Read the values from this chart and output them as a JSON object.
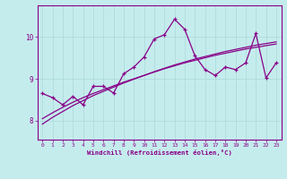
{
  "title": "",
  "xlabel": "Windchill (Refroidissement éolien,°C)",
  "ylabel": "",
  "bg_color": "#c5eced",
  "line_color": "#880088",
  "x": [
    0,
    1,
    2,
    3,
    4,
    5,
    6,
    7,
    8,
    9,
    10,
    11,
    12,
    13,
    14,
    15,
    16,
    17,
    18,
    19,
    20,
    21,
    22,
    23
  ],
  "y_main": [
    8.65,
    8.55,
    8.38,
    8.58,
    8.38,
    8.82,
    8.82,
    8.66,
    9.12,
    9.28,
    9.52,
    9.95,
    10.05,
    10.42,
    10.18,
    9.55,
    9.22,
    9.08,
    9.28,
    9.22,
    9.38,
    10.08,
    9.02,
    9.38
  ],
  "y_trend1": [
    7.92,
    8.08,
    8.22,
    8.36,
    8.48,
    8.6,
    8.7,
    8.8,
    8.9,
    8.99,
    9.08,
    9.17,
    9.25,
    9.33,
    9.4,
    9.47,
    9.53,
    9.59,
    9.65,
    9.7,
    9.75,
    9.8,
    9.84,
    9.88
  ],
  "y_trend2": [
    8.05,
    8.19,
    8.32,
    8.44,
    8.55,
    8.65,
    8.74,
    8.83,
    8.92,
    9.0,
    9.08,
    9.16,
    9.24,
    9.31,
    9.38,
    9.44,
    9.5,
    9.56,
    9.61,
    9.66,
    9.71,
    9.75,
    9.79,
    9.83
  ],
  "ylim": [
    7.55,
    10.75
  ],
  "yticks": [
    8,
    9,
    10
  ],
  "xticks": [
    0,
    1,
    2,
    3,
    4,
    5,
    6,
    7,
    8,
    9,
    10,
    11,
    12,
    13,
    14,
    15,
    16,
    17,
    18,
    19,
    20,
    21,
    22,
    23
  ],
  "grid_color": "#aad8d8",
  "marker": "+"
}
